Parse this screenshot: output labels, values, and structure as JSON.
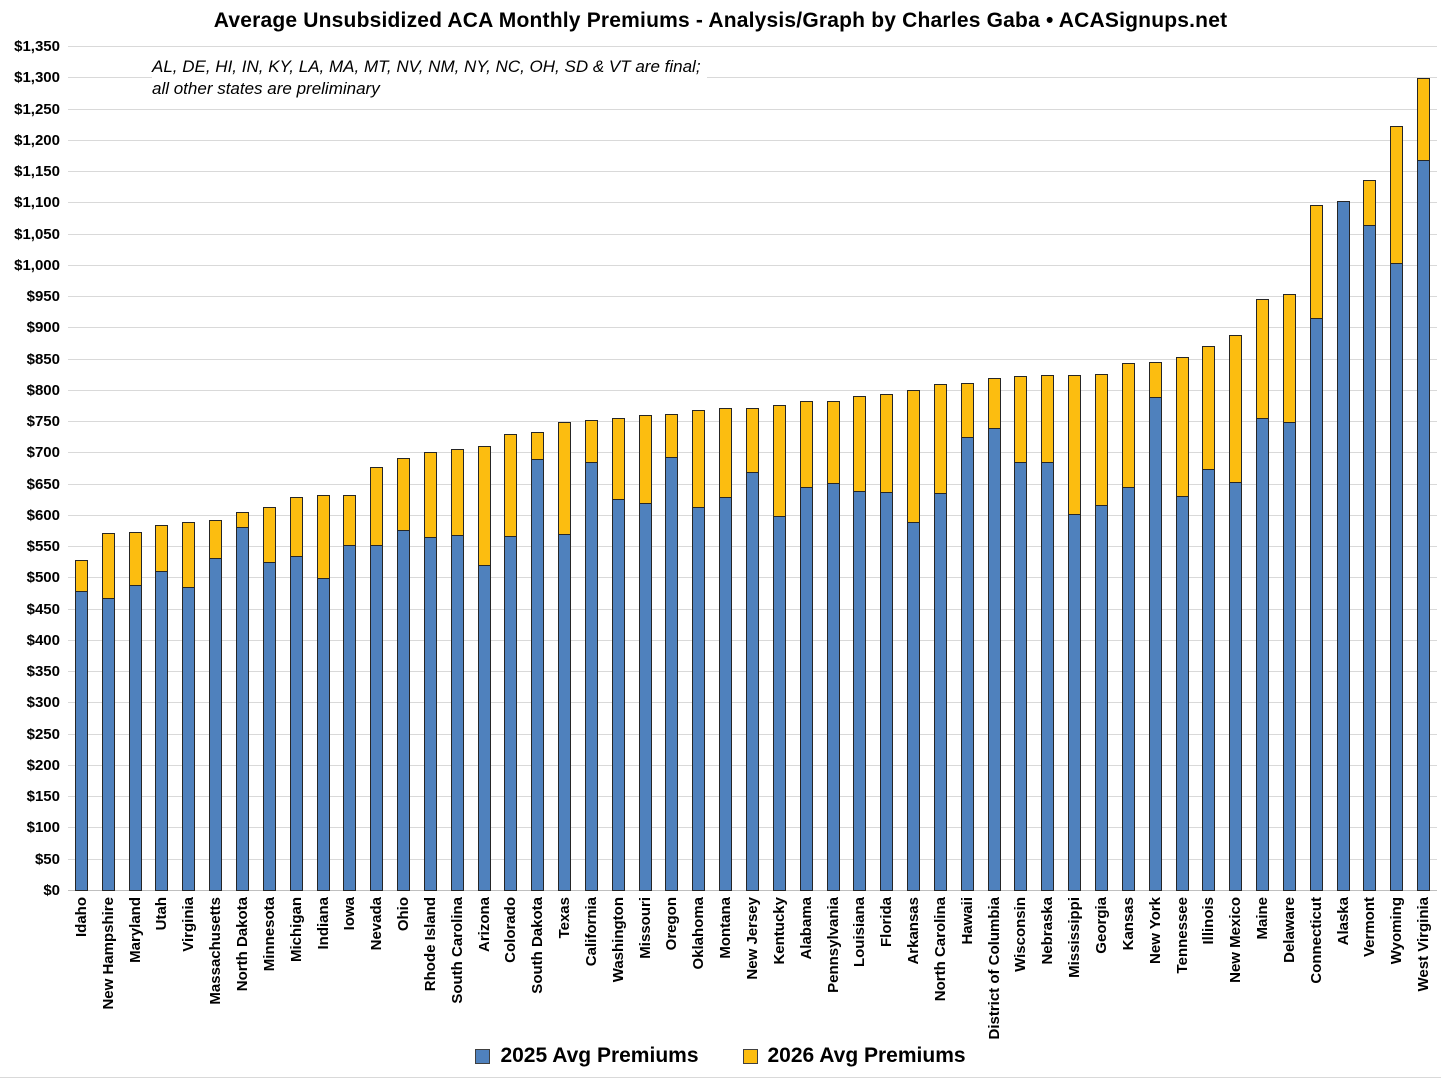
{
  "title": "Average Unsubsidized ACA Monthly Premiums - Analysis/Graph by Charles Gaba • ACASignups.net",
  "subtitle": {
    "line1": "AL, DE, HI, IN, KY, LA, MA, MT, NV, NM, NY, NC, OH, SD & VT are final;",
    "line2": "all other states are preliminary"
  },
  "legend": {
    "items": [
      {
        "label": "2025 Avg Premiums",
        "color": "#4f81bd"
      },
      {
        "label": "2026 Avg Premiums",
        "color": "#fcbd10"
      }
    ]
  },
  "colors": {
    "bar_2025": "#4f81bd",
    "bar_2026": "#fcbd10",
    "bar_border": "#262626",
    "gridline": "#d9d9d9",
    "background": "#ffffff",
    "text": "#000000"
  },
  "chart_data": {
    "type": "bar",
    "variant": "overlaid-stacked-columns",
    "title": "Average Unsubsidized ACA Monthly Premiums - Analysis/Graph by Charles Gaba • ACASignups.net",
    "xlabel": "",
    "ylabel": "",
    "ylim": [
      0,
      1350
    ],
    "ytick_step": 50,
    "grid": true,
    "legend_position": "bottom",
    "ytick_labels": [
      "$0",
      "$50",
      "$100",
      "$150",
      "$200",
      "$250",
      "$300",
      "$350",
      "$400",
      "$450",
      "$500",
      "$550",
      "$600",
      "$650",
      "$700",
      "$750",
      "$800",
      "$850",
      "$900",
      "$950",
      "$1,000",
      "$1,050",
      "$1,100",
      "$1,150",
      "$1,200",
      "$1,250",
      "$1,300",
      "$1,350"
    ],
    "categories": [
      "Idaho",
      "New Hampshire",
      "Maryland",
      "Utah",
      "Virginia",
      "Massachusetts",
      "North Dakota",
      "Minnesota",
      "Michigan",
      "Indiana",
      "Iowa",
      "Nevada",
      "Ohio",
      "Rhode Island",
      "South Carolina",
      "Arizona",
      "Colorado",
      "South Dakota",
      "Texas",
      "California",
      "Washington",
      "Missouri",
      "Oregon",
      "Oklahoma",
      "Montana",
      "New Jersey",
      "Kentucky",
      "Alabama",
      "Pennsylvania",
      "Louisiana",
      "Florida",
      "Arkansas",
      "North Carolina",
      "Hawaii",
      "District of Columbia",
      "Wisconsin",
      "Nebraska",
      "Mississippi",
      "Georgia",
      "Kansas",
      "New York",
      "Tennessee",
      "Illinois",
      "New Mexico",
      "Maine",
      "Delaware",
      "Connecticut",
      "Alaska",
      "Vermont",
      "Wyoming",
      "West Virginia"
    ],
    "series": [
      {
        "name": "2025 Avg Premiums",
        "color": "#4f81bd",
        "values": [
          480,
          468,
          489,
          512,
          487,
          532,
          583,
          527,
          536,
          501,
          553,
          553,
          577,
          566,
          570,
          521,
          568,
          691,
          571,
          687,
          627,
          620,
          695,
          614,
          631,
          671,
          600,
          646,
          653,
          640,
          639,
          590,
          636,
          727,
          740,
          686,
          686,
          603,
          618,
          647,
          790,
          632,
          675,
          655,
          757,
          750,
          917,
          1104,
          1066,
          1005,
          1170
        ]
      },
      {
        "name": "2026 Avg Premiums",
        "color": "#fcbd10",
        "values": [
          529,
          572,
          574,
          585,
          590,
          593,
          607,
          614,
          630,
          633,
          634,
          678,
          693,
          702,
          707,
          712,
          731,
          734,
          750,
          754,
          756,
          761,
          763,
          770,
          772,
          773,
          778,
          783,
          784,
          792,
          795,
          801,
          811,
          813,
          820,
          823,
          825,
          826,
          827,
          844,
          846,
          855,
          872,
          890,
          947,
          955,
          1097,
          1104,
          1138,
          1223,
          1300
        ]
      }
    ]
  }
}
